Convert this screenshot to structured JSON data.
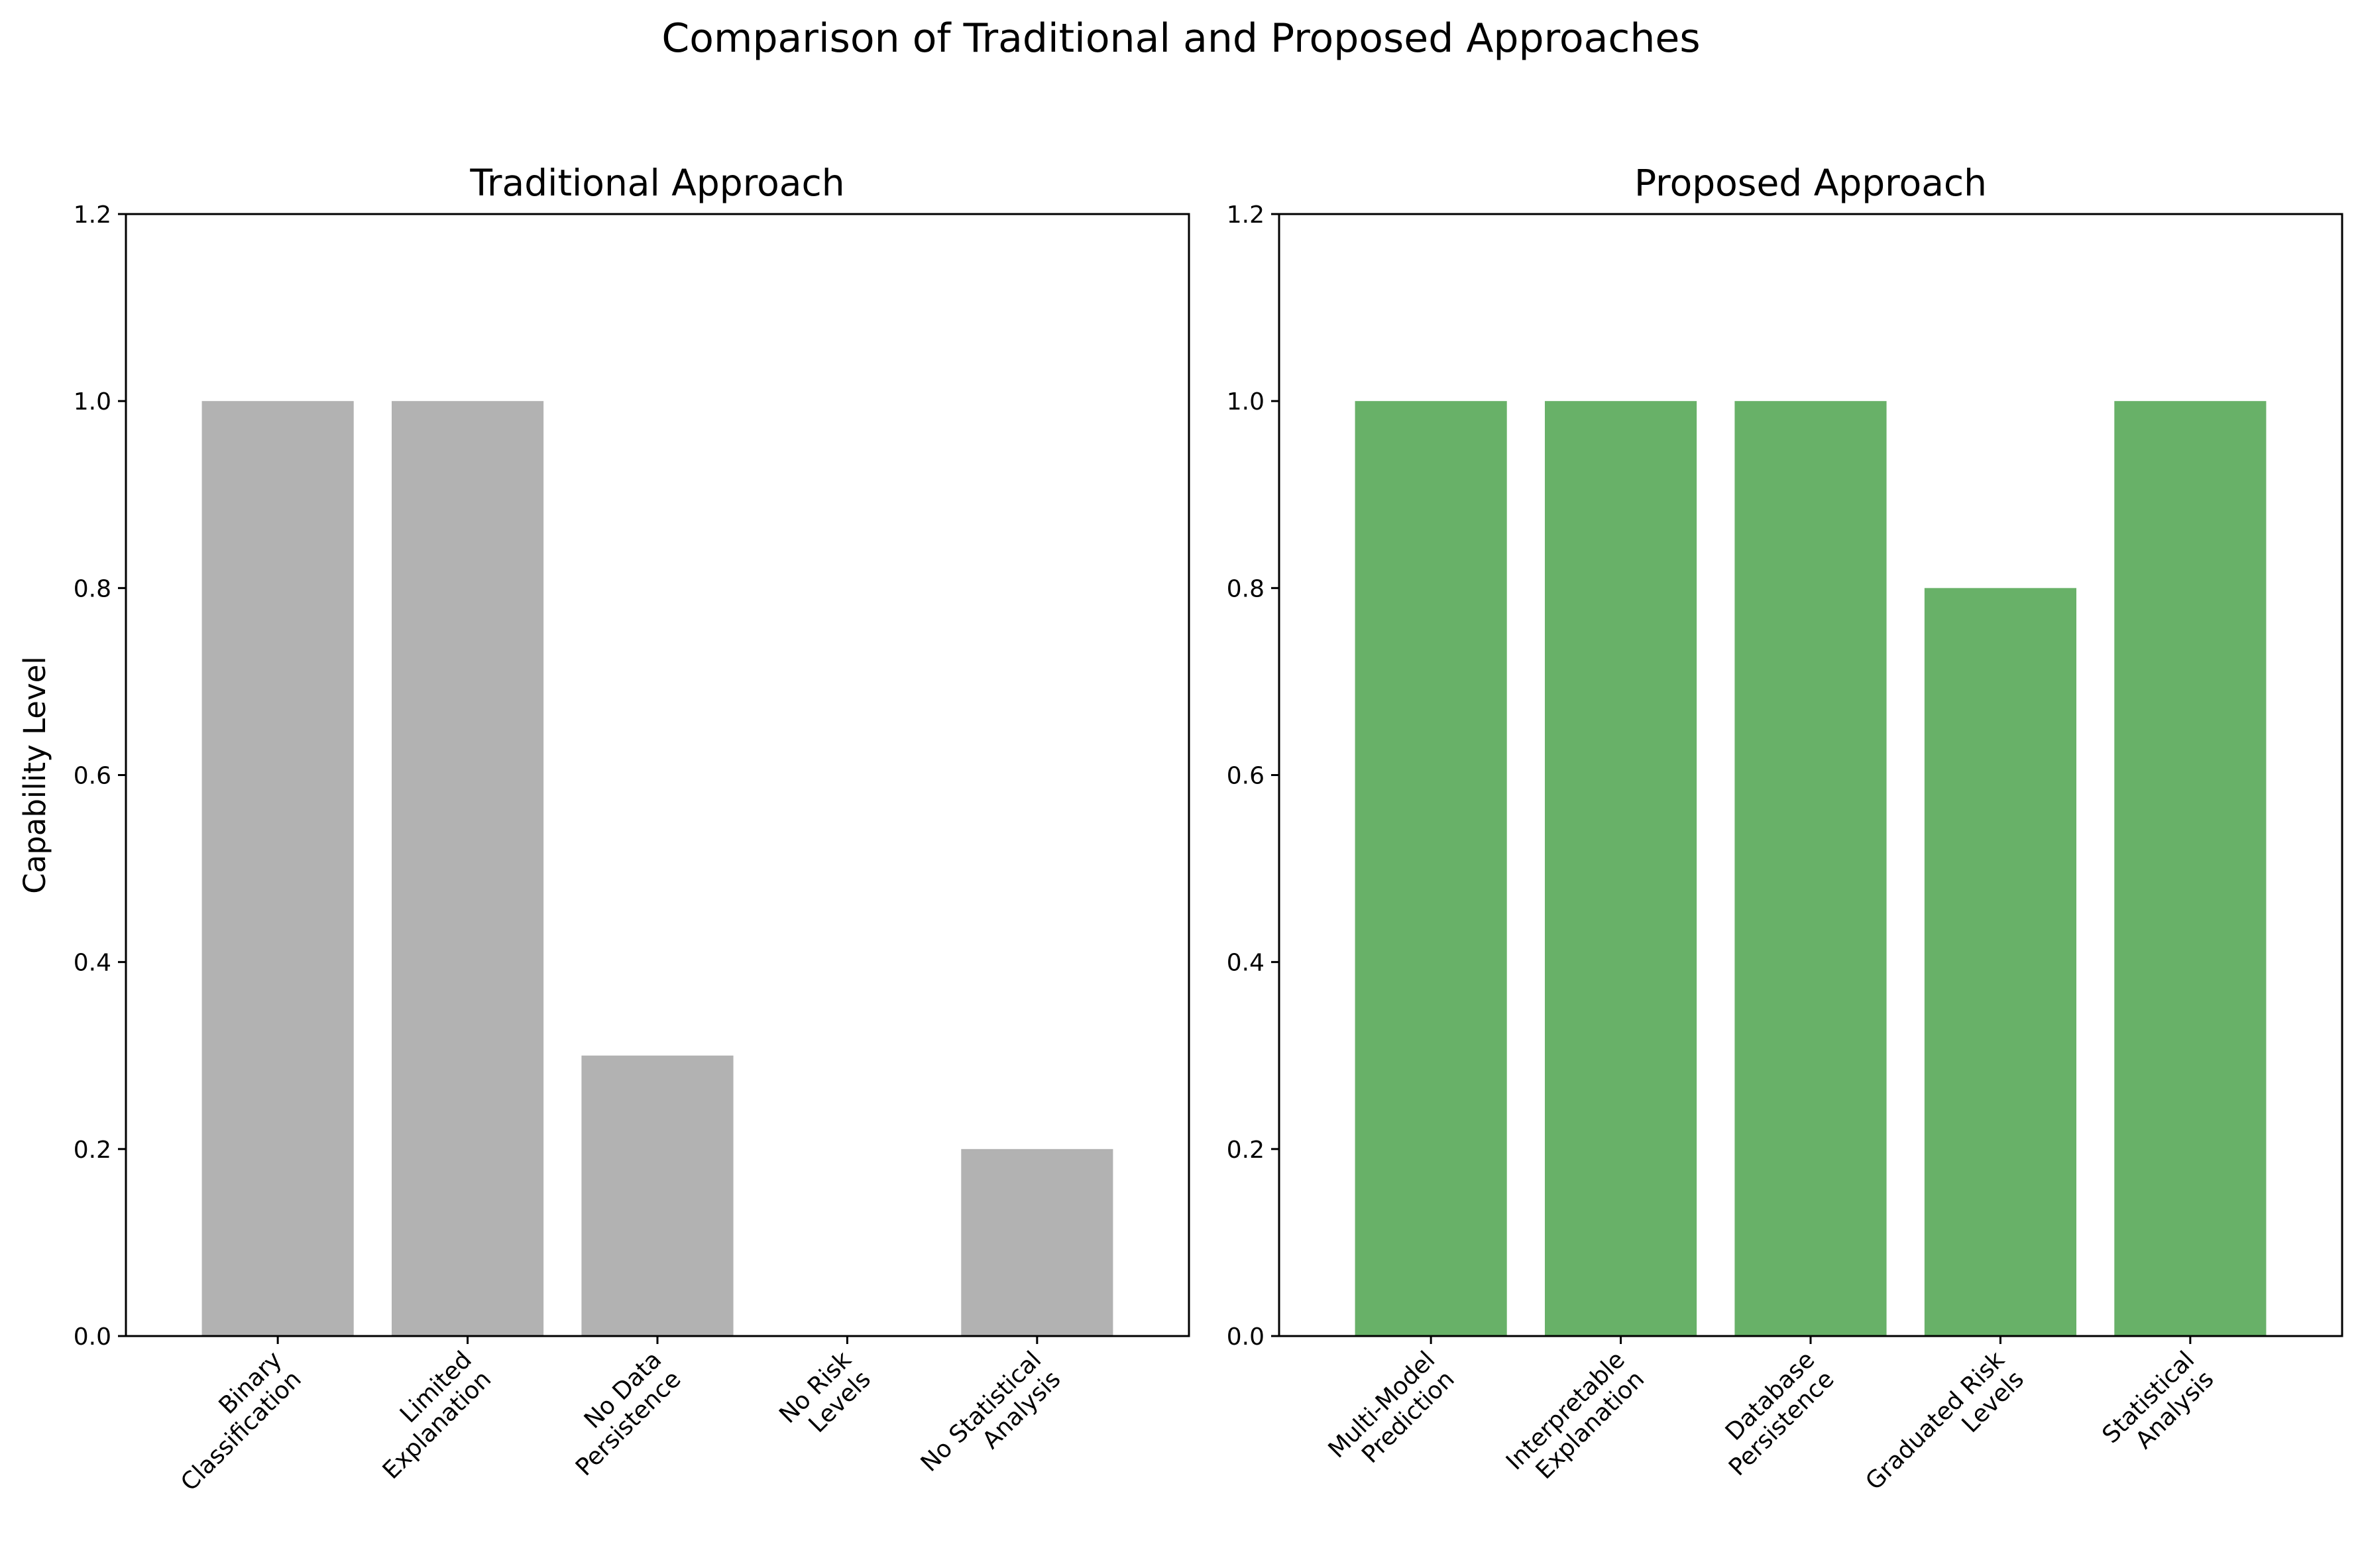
{
  "title": "Comparison of Traditional and Proposed Approaches",
  "colors": {
    "traditional": "#b2b2b2",
    "proposed": "#68b168",
    "axis": "#000000"
  },
  "chart_data": [
    {
      "type": "bar",
      "title": "Traditional Approach",
      "ylabel": "Capability Level",
      "ylim": [
        0,
        1.2
      ],
      "yticks": [
        "0.0",
        "0.2",
        "0.4",
        "0.6",
        "0.8",
        "1.0",
        "1.2"
      ],
      "categories": [
        [
          "Binary",
          "Classification"
        ],
        [
          "Limited",
          "Explanation"
        ],
        [
          "No Data",
          "Persistence"
        ],
        [
          "No Risk",
          "Levels"
        ],
        [
          "No Statistical",
          "Analysis"
        ]
      ],
      "values": [
        1.0,
        1.0,
        0.3,
        0.0,
        0.2
      ],
      "color": "#b2b2b2",
      "grid": false
    },
    {
      "type": "bar",
      "title": "Proposed Approach",
      "ylabel": "",
      "ylim": [
        0,
        1.2
      ],
      "yticks": [
        "0.0",
        "0.2",
        "0.4",
        "0.6",
        "0.8",
        "1.0",
        "1.2"
      ],
      "categories": [
        [
          "Multi-Model",
          "Prediction"
        ],
        [
          "Interpretable",
          "Explanation"
        ],
        [
          "Database",
          "Persistence"
        ],
        [
          "Graduated Risk",
          "Levels"
        ],
        [
          "Statistical",
          "Analysis"
        ]
      ],
      "values": [
        1.0,
        1.0,
        1.0,
        0.8,
        1.0
      ],
      "color": "#68b168",
      "grid": false
    }
  ]
}
